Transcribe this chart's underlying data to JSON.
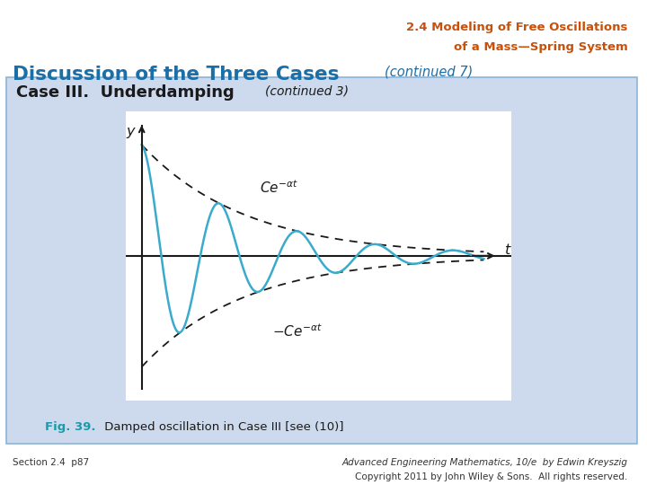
{
  "bg_color": "#ffffff",
  "slide_bg": "#cdd9ec",
  "title_color": "#c8500a",
  "title_text1": "2.4 Modeling of Free Oscillations",
  "title_text2": "of a Mass—Spring System",
  "subtitle_color": "#1a6fa8",
  "subtitle_bold": "Discussion of the Three Cases",
  "subtitle_italic": "(continued 7)",
  "case_title_bold": "Case III.  Underdamping",
  "case_title_italic": "(continued 3)",
  "fig_caption_bold": "Fig. 39.",
  "fig_caption_rest": " Damped oscillation in Case III [see (10)]",
  "fig_caption_color": "#1a9aaa",
  "footer_left": "Section 2.4  p87",
  "footer_right1": "Advanced Engineering Mathematics, 10/e  by Edwin Kreyszig",
  "footer_right2": "Copyright 2011 by John Wiley & Sons.  All rights reserved.",
  "curve_color": "#3aabcc",
  "envelope_color": "#1a1a1a",
  "axis_color": "#1a1a1a",
  "alpha": 0.3,
  "omega": 2.5,
  "C": 1.0,
  "t_max": 11.0,
  "plot_bg": "#ffffff"
}
